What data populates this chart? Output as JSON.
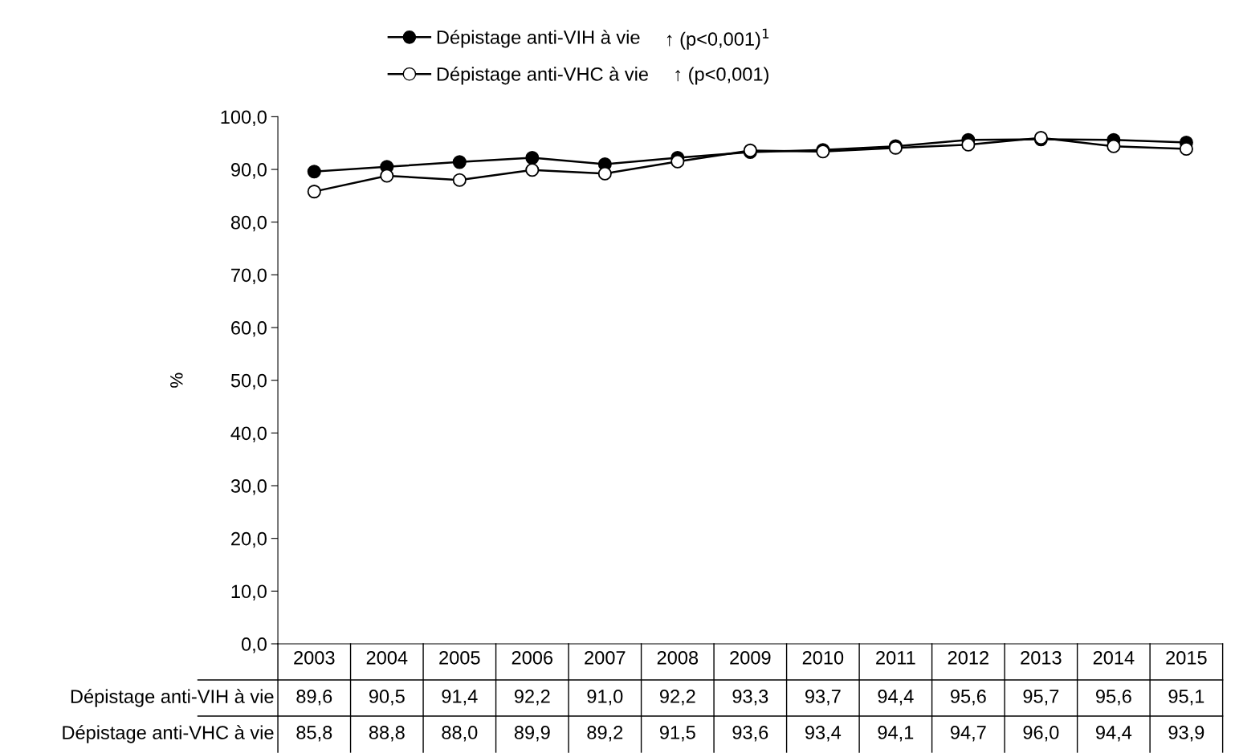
{
  "chart_data": {
    "type": "line",
    "ylabel": "%",
    "categories": [
      "2003",
      "2004",
      "2005",
      "2006",
      "2007",
      "2008",
      "2009",
      "2010",
      "2011",
      "2012",
      "2013",
      "2014",
      "2015"
    ],
    "series": [
      {
        "name": "Dépistage anti-VIH à vie",
        "color": "#000000",
        "values": [
          89.6,
          90.5,
          91.4,
          92.2,
          91.0,
          92.2,
          93.3,
          93.7,
          94.4,
          95.6,
          95.7,
          95.6,
          95.1
        ],
        "value_labels": [
          "89,6",
          "90,5",
          "91,4",
          "92,2",
          "91,0",
          "92,2",
          "93,3",
          "93,7",
          "94,4",
          "95,6",
          "95,7",
          "95,6",
          "95,1"
        ]
      },
      {
        "name": "Dépistage anti-VHC à vie",
        "color": "#ffffff",
        "values": [
          85.8,
          88.8,
          88.0,
          89.9,
          89.2,
          91.5,
          93.6,
          93.4,
          94.1,
          94.7,
          96.0,
          94.4,
          93.9
        ],
        "value_labels": [
          "85,8",
          "88,8",
          "88,0",
          "89,9",
          "89,2",
          "91,5",
          "93,6",
          "93,4",
          "94,1",
          "94,7",
          "96,0",
          "94,4",
          "93,9"
        ]
      }
    ],
    "annotations": [
      "↑ (p<0,001)$^{1}$",
      "↑ (p<0,001)"
    ],
    "ylim": [
      0,
      100
    ],
    "yticks": [
      {
        "value": 0,
        "label": "0,0"
      },
      {
        "value": 10,
        "label": "10,0"
      },
      {
        "value": 20,
        "label": "20,0"
      },
      {
        "value": 30,
        "label": "30,0"
      },
      {
        "value": 40,
        "label": "40,0"
      },
      {
        "value": 50,
        "label": "50,0"
      },
      {
        "value": 60,
        "label": "60,0"
      },
      {
        "value": 70,
        "label": "70,0"
      },
      {
        "value": 80,
        "label": "80,0"
      },
      {
        "value": 90,
        "label": "90,0"
      },
      {
        "value": 100,
        "label": "100,0"
      }
    ],
    "grid": false,
    "legend": "top",
    "marker": "circle",
    "line_style": "solid",
    "data_labels": true
  }
}
